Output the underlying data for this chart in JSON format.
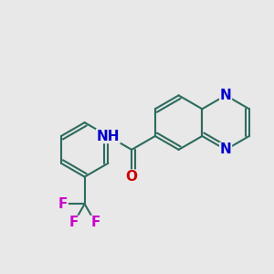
{
  "background_color": "#e8e8e8",
  "bond_color": "#2d6b5e",
  "nitrogen_color": "#0000cc",
  "oxygen_color": "#cc0000",
  "fluorine_color": "#cc00cc",
  "line_width": 1.5,
  "figsize": [
    3.0,
    3.0
  ],
  "dpi": 100,
  "xlim": [
    0,
    300
  ],
  "ylim": [
    0,
    300
  ],
  "font_size": 11,
  "font_size_small": 9
}
